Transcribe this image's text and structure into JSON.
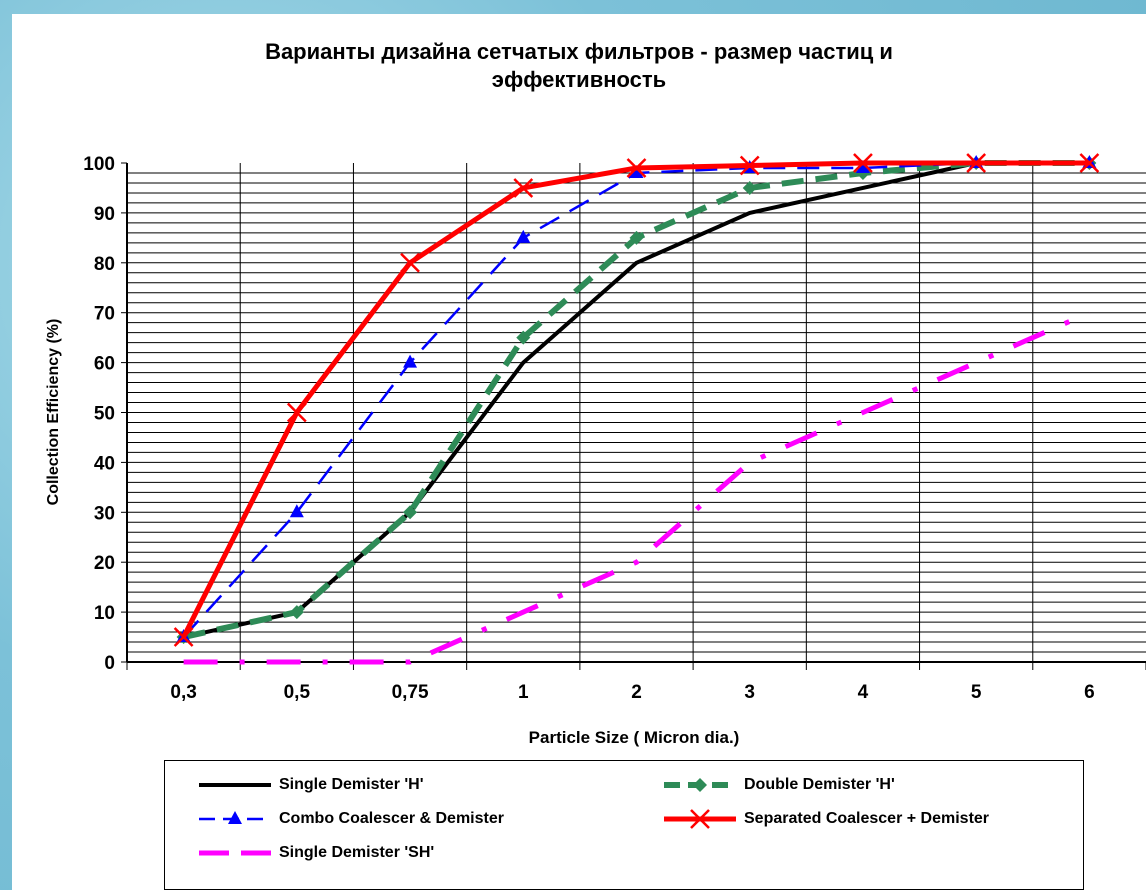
{
  "chart_data": {
    "type": "line",
    "title_line1": "Варианты дизайна сетчатых фильтров  -  размер частиц и",
    "title_line2": "эффективность",
    "xlabel": "Particle  Size  ( Micron  dia.)",
    "ylabel": "Collection  Efficiency  (%)",
    "categories": [
      "0,3",
      "0,5",
      "0,75",
      "1",
      "2",
      "3",
      "4",
      "5",
      "6"
    ],
    "ylim": [
      0,
      100
    ],
    "yticks": [
      "0",
      "10",
      "20",
      "30",
      "40",
      "50",
      "60",
      "70",
      "80",
      "90",
      "100"
    ],
    "grid": true,
    "legend_position": "bottom",
    "series": [
      {
        "name": "Single Demister 'H'",
        "color": "#000000",
        "style": "solid",
        "marker": "none",
        "values": [
          5,
          10,
          30,
          60,
          80,
          90,
          95,
          100,
          100
        ]
      },
      {
        "name": "Double Demister 'H'",
        "color": "#2e8b57",
        "style": "dashed",
        "marker": "diamond",
        "values": [
          5,
          10,
          30,
          65,
          85,
          95,
          98,
          100,
          100
        ]
      },
      {
        "name": "Combo Coalescer & Demister",
        "color": "#0000ff",
        "style": "dashed",
        "marker": "triangle",
        "values": [
          5,
          30,
          60,
          85,
          98,
          99,
          99,
          100,
          100
        ]
      },
      {
        "name": "Separated Coalescer + Demister",
        "color": "#ff0000",
        "style": "solid",
        "marker": "x",
        "values": [
          5,
          50,
          80,
          95,
          99,
          99.5,
          100,
          100,
          100
        ]
      },
      {
        "name": "Single Demister 'SH'",
        "color": "#ff00ff",
        "style": "dashdot",
        "marker": "none",
        "values": [
          0,
          0,
          0,
          10,
          20,
          40,
          50,
          60,
          70
        ]
      }
    ]
  }
}
